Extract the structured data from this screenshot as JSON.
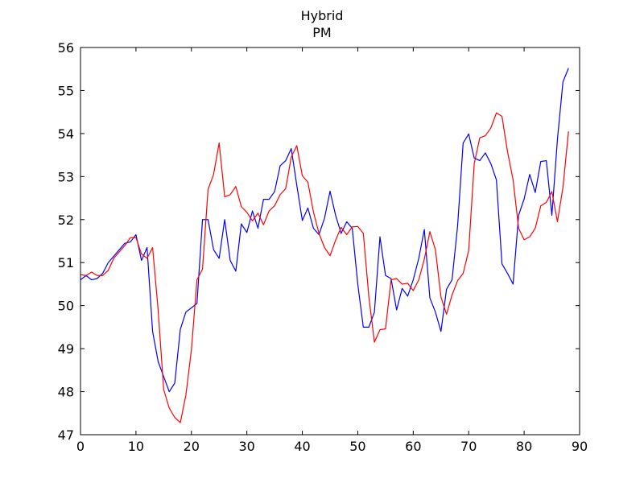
{
  "chart_data": {
    "type": "line",
    "title": "Hybrid",
    "subtitle": "PM",
    "xlabel": "",
    "ylabel": "",
    "xlim": [
      0,
      90
    ],
    "ylim": [
      47,
      56
    ],
    "xticks": [
      0,
      10,
      20,
      30,
      40,
      50,
      60,
      70,
      80,
      90
    ],
    "yticks": [
      47,
      48,
      49,
      50,
      51,
      52,
      53,
      54,
      55,
      56
    ],
    "grid": false,
    "series": [
      {
        "color": "#0000ff",
        "x": [
          0,
          1,
          2,
          3,
          4,
          5,
          6,
          7,
          8,
          9,
          10,
          11,
          12,
          13,
          14,
          15,
          16,
          17,
          18,
          19,
          20,
          21,
          22,
          23,
          24,
          25,
          26,
          27,
          28,
          29,
          30,
          31,
          32,
          33,
          34,
          35,
          36,
          37,
          38,
          39,
          40,
          41,
          42,
          43,
          44,
          45,
          46,
          47,
          48,
          49,
          50,
          51,
          52,
          53,
          54,
          55,
          56,
          57,
          58,
          59,
          60,
          61,
          62,
          63,
          64,
          65,
          66,
          67,
          68,
          69,
          70,
          71,
          72,
          73,
          74,
          75,
          76,
          77,
          78,
          79,
          80,
          81,
          82,
          83,
          84,
          85,
          86,
          87,
          88
        ],
        "y": [
          50.6,
          50.7,
          50.6,
          50.63,
          50.75,
          51.0,
          51.15,
          51.3,
          51.45,
          51.48,
          51.65,
          51.05,
          51.35,
          49.4,
          48.7,
          48.35,
          48.0,
          48.2,
          49.45,
          49.85,
          49.95,
          50.05,
          52.0,
          52.0,
          51.3,
          51.1,
          52.0,
          51.05,
          50.8,
          51.9,
          51.7,
          52.2,
          51.8,
          52.47,
          52.47,
          52.65,
          53.25,
          53.37,
          53.65,
          52.8,
          51.98,
          52.27,
          51.8,
          51.65,
          52.03,
          52.66,
          52.1,
          51.68,
          51.95,
          51.8,
          50.5,
          49.5,
          49.5,
          49.85,
          51.6,
          50.7,
          50.63,
          49.9,
          50.4,
          50.22,
          50.6,
          51.1,
          51.77,
          50.18,
          49.85,
          49.4,
          50.38,
          50.6,
          51.85,
          53.78,
          53.99,
          53.43,
          53.37,
          53.55,
          53.3,
          52.92,
          50.97,
          50.75,
          50.5,
          52.1,
          52.48,
          53.05,
          52.63,
          53.35,
          53.37,
          52.1,
          53.86,
          55.2,
          55.52
        ]
      },
      {
        "color": "#ff0000",
        "x": [
          0,
          1,
          2,
          3,
          4,
          5,
          6,
          7,
          8,
          9,
          10,
          11,
          12,
          13,
          14,
          15,
          16,
          17,
          18,
          19,
          20,
          21,
          22,
          23,
          24,
          25,
          26,
          27,
          28,
          29,
          30,
          31,
          32,
          33,
          34,
          35,
          36,
          37,
          38,
          39,
          40,
          41,
          42,
          43,
          44,
          45,
          46,
          47,
          48,
          49,
          50,
          51,
          52,
          53,
          54,
          55,
          56,
          57,
          58,
          59,
          60,
          61,
          62,
          63,
          64,
          65,
          66,
          67,
          68,
          69,
          70,
          71,
          72,
          73,
          74,
          75,
          76,
          77,
          78,
          79,
          80,
          81,
          82,
          83,
          84,
          85,
          86,
          87,
          88
        ],
        "y": [
          50.72,
          50.7,
          50.78,
          50.7,
          50.7,
          50.82,
          51.1,
          51.25,
          51.4,
          51.58,
          51.58,
          51.2,
          51.1,
          51.35,
          49.9,
          48.05,
          47.62,
          47.4,
          47.28,
          47.92,
          48.97,
          50.6,
          50.85,
          52.7,
          53.05,
          53.78,
          52.53,
          52.58,
          52.77,
          52.3,
          52.17,
          51.97,
          52.15,
          51.88,
          52.2,
          52.32,
          52.58,
          52.72,
          53.45,
          53.72,
          53.02,
          52.87,
          52.18,
          51.68,
          51.35,
          51.16,
          51.52,
          51.82,
          51.65,
          51.83,
          51.84,
          51.68,
          50.2,
          49.15,
          49.44,
          49.46,
          50.6,
          50.63,
          50.5,
          50.52,
          50.35,
          50.6,
          51.08,
          51.72,
          51.3,
          50.2,
          49.8,
          50.25,
          50.58,
          50.75,
          51.28,
          53.3,
          53.9,
          53.95,
          54.13,
          54.48,
          54.4,
          53.58,
          52.93,
          51.8,
          51.53,
          51.6,
          51.8,
          52.32,
          52.4,
          52.65,
          51.95,
          52.75,
          54.05
        ]
      }
    ]
  }
}
